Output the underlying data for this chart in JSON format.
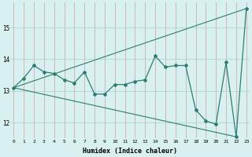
{
  "xlabel": "Humidex (Indice chaleur)",
  "x_values": [
    0,
    1,
    2,
    3,
    4,
    5,
    6,
    7,
    8,
    9,
    10,
    11,
    12,
    13,
    14,
    15,
    16,
    17,
    18,
    19,
    20,
    21,
    22,
    23
  ],
  "y_data": [
    13.1,
    13.4,
    13.8,
    13.6,
    13.55,
    13.35,
    13.25,
    13.6,
    12.9,
    12.9,
    13.2,
    13.2,
    13.3,
    13.35,
    14.1,
    13.75,
    13.8,
    13.8,
    12.4,
    12.05,
    11.95,
    13.9,
    11.55,
    15.6
  ],
  "line_color": "#2e7d6e",
  "trend1_x": [
    0,
    23
  ],
  "trend1_y": [
    13.1,
    15.6
  ],
  "trend2_x": [
    0,
    22
  ],
  "trend2_y": [
    13.1,
    11.55
  ],
  "bg_color": "#d8f0f0",
  "grid_color": "#aacfcf",
  "ylim": [
    11.5,
    15.8
  ],
  "yticks": [
    12,
    13,
    14,
    15
  ],
  "xlim": [
    -0.3,
    23.3
  ]
}
